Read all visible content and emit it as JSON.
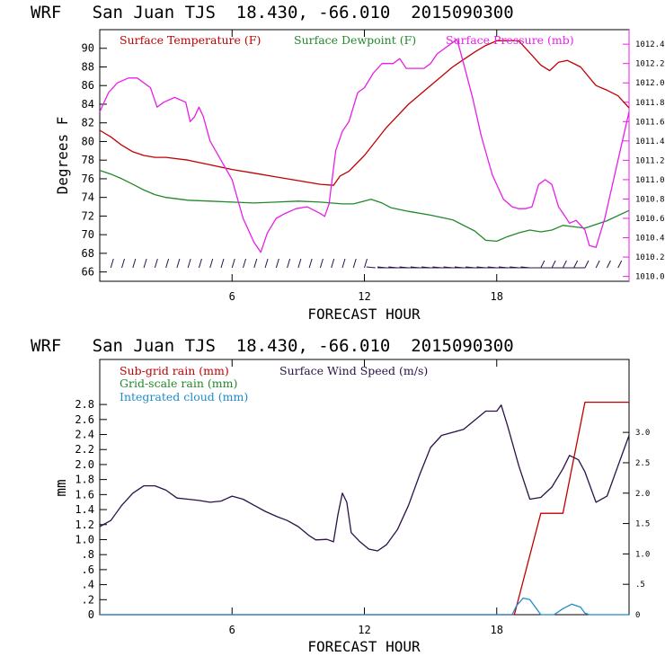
{
  "chart_data": [
    {
      "type": "line",
      "title": "WRF   San Juan TJS  18.430, -66.010  2015090300",
      "xlabel": "FORECAST HOUR",
      "ylabel": "Degrees F",
      "xlim": [
        0,
        24
      ],
      "x_ticks": [
        6,
        12,
        18
      ],
      "ylim": [
        65,
        92
      ],
      "y_ticks": [
        66,
        68,
        70,
        72,
        74,
        76,
        78,
        80,
        82,
        84,
        86,
        88,
        90
      ],
      "y2lim": [
        1009.95,
        1012.55
      ],
      "y2_ticks": [
        "1010.0",
        "1010.2",
        "1010.4",
        "1010.6",
        "1010.8",
        "1011.0",
        "1011.2",
        "1011.4",
        "1011.6",
        "1011.8",
        "1012.0",
        "1012.2",
        "1012.4"
      ],
      "colors": {
        "temp": "#c00000",
        "dew": "#22882a",
        "pres": "#e81ee8",
        "wind": "#2a1248"
      },
      "series": [
        {
          "name": "Surface Temperature (F)",
          "axis": "left",
          "points": [
            [
              0,
              81.2
            ],
            [
              0.5,
              80.5
            ],
            [
              1,
              79.6
            ],
            [
              1.5,
              78.9
            ],
            [
              2,
              78.5
            ],
            [
              2.5,
              78.3
            ],
            [
              3,
              78.3
            ],
            [
              4,
              78.0
            ],
            [
              5,
              77.5
            ],
            [
              6,
              77.0
            ],
            [
              7,
              76.6
            ],
            [
              8,
              76.2
            ],
            [
              9,
              75.8
            ],
            [
              10,
              75.4
            ],
            [
              10.6,
              75.3
            ],
            [
              10.9,
              76.3
            ],
            [
              11.3,
              76.8
            ],
            [
              12,
              78.5
            ],
            [
              12.5,
              80.0
            ],
            [
              13,
              81.5
            ],
            [
              14,
              84.0
            ],
            [
              15,
              86.0
            ],
            [
              16,
              88.0
            ],
            [
              17,
              89.6
            ],
            [
              17.5,
              90.3
            ],
            [
              18,
              90.8
            ],
            [
              19,
              90.8
            ],
            [
              19.5,
              89.5
            ],
            [
              20,
              88.2
            ],
            [
              20.4,
              87.6
            ],
            [
              20.8,
              88.5
            ],
            [
              21.2,
              88.7
            ],
            [
              21.8,
              88.0
            ],
            [
              22.5,
              86.0
            ],
            [
              23,
              85.5
            ],
            [
              23.5,
              84.9
            ],
            [
              24,
              83.6
            ]
          ]
        },
        {
          "name": "Surface Dewpoint (F)",
          "axis": "left",
          "points": [
            [
              0,
              76.9
            ],
            [
              0.5,
              76.5
            ],
            [
              1,
              76.0
            ],
            [
              1.5,
              75.4
            ],
            [
              2,
              74.8
            ],
            [
              2.5,
              74.3
            ],
            [
              3,
              74.0
            ],
            [
              4,
              73.7
            ],
            [
              5,
              73.6
            ],
            [
              6,
              73.5
            ],
            [
              7,
              73.4
            ],
            [
              8,
              73.5
            ],
            [
              9,
              73.6
            ],
            [
              10,
              73.5
            ],
            [
              11,
              73.3
            ],
            [
              11.5,
              73.3
            ],
            [
              12,
              73.6
            ],
            [
              12.3,
              73.8
            ],
            [
              12.8,
              73.4
            ],
            [
              13.2,
              72.9
            ],
            [
              14,
              72.5
            ],
            [
              15,
              72.1
            ],
            [
              16,
              71.6
            ],
            [
              17,
              70.4
            ],
            [
              17.5,
              69.4
            ],
            [
              18,
              69.3
            ],
            [
              18.5,
              69.8
            ],
            [
              19,
              70.2
            ],
            [
              19.5,
              70.5
            ],
            [
              20,
              70.3
            ],
            [
              20.5,
              70.5
            ],
            [
              21,
              71.0
            ],
            [
              22,
              70.7
            ],
            [
              23,
              71.5
            ],
            [
              24,
              72.6
            ]
          ]
        },
        {
          "name": "Surface Pressure (mb)",
          "axis": "right",
          "points": [
            [
              0,
              1011.7
            ],
            [
              0.4,
              1011.9
            ],
            [
              0.8,
              1012.0
            ],
            [
              1.3,
              1012.05
            ],
            [
              1.7,
              1012.05
            ],
            [
              2,
              1012.0
            ],
            [
              2.3,
              1011.95
            ],
            [
              2.6,
              1011.75
            ],
            [
              2.9,
              1011.8
            ],
            [
              3.4,
              1011.85
            ],
            [
              3.9,
              1011.8
            ],
            [
              4.1,
              1011.6
            ],
            [
              4.3,
              1011.65
            ],
            [
              4.5,
              1011.75
            ],
            [
              4.7,
              1011.65
            ],
            [
              5.0,
              1011.4
            ],
            [
              5.5,
              1011.2
            ],
            [
              6,
              1011.0
            ],
            [
              6.5,
              1010.6
            ],
            [
              7,
              1010.35
            ],
            [
              7.3,
              1010.25
            ],
            [
              7.6,
              1010.45
            ],
            [
              8,
              1010.6
            ],
            [
              8.4,
              1010.65
            ],
            [
              8.9,
              1010.7
            ],
            [
              9.4,
              1010.72
            ],
            [
              10,
              1010.65
            ],
            [
              10.2,
              1010.62
            ],
            [
              10.4,
              1010.75
            ],
            [
              10.7,
              1011.3
            ],
            [
              11,
              1011.5
            ],
            [
              11.3,
              1011.6
            ],
            [
              11.7,
              1011.9
            ],
            [
              12,
              1011.95
            ],
            [
              12.4,
              1012.1
            ],
            [
              12.8,
              1012.2
            ],
            [
              13.3,
              1012.2
            ],
            [
              13.6,
              1012.25
            ],
            [
              13.9,
              1012.15
            ],
            [
              14.3,
              1012.15
            ],
            [
              14.7,
              1012.15
            ],
            [
              15,
              1012.2
            ],
            [
              15.3,
              1012.3
            ],
            [
              15.6,
              1012.35
            ],
            [
              15.9,
              1012.4
            ],
            [
              16.2,
              1012.45
            ],
            [
              16.5,
              1012.2
            ],
            [
              16.9,
              1011.85
            ],
            [
              17.3,
              1011.45
            ],
            [
              17.8,
              1011.05
            ],
            [
              18.3,
              1010.8
            ],
            [
              18.7,
              1010.72
            ],
            [
              19.0,
              1010.7
            ],
            [
              19.3,
              1010.7
            ],
            [
              19.6,
              1010.72
            ],
            [
              19.9,
              1010.95
            ],
            [
              20.2,
              1011.0
            ],
            [
              20.5,
              1010.95
            ],
            [
              20.8,
              1010.72
            ],
            [
              21.1,
              1010.62
            ],
            [
              21.3,
              1010.55
            ],
            [
              21.6,
              1010.58
            ],
            [
              22,
              1010.48
            ],
            [
              22.2,
              1010.32
            ],
            [
              22.5,
              1010.3
            ],
            [
              22.9,
              1010.6
            ],
            [
              23.3,
              1011.0
            ],
            [
              23.7,
              1011.4
            ],
            [
              24,
              1011.7
            ]
          ]
        }
      ]
    },
    {
      "type": "line",
      "title": "WRF   San Juan TJS  18.430, -66.010  2015090300",
      "xlabel": "FORECAST HOUR",
      "ylabel": "mm",
      "xlim": [
        0,
        24
      ],
      "x_ticks": [
        6,
        12,
        18
      ],
      "ylim": [
        0,
        3.4
      ],
      "y_ticks": [
        "0",
        ".2",
        ".4",
        ".6",
        ".8",
        "1.0",
        "1.2",
        "1.4",
        "1.6",
        "1.8",
        "2.0",
        "2.2",
        "2.4",
        "2.6",
        "2.8"
      ],
      "y2lim": [
        0,
        4.2
      ],
      "y2_ticks": [
        "0",
        ".5",
        "1.0",
        "1.5",
        "2.0",
        "2.5",
        "3.0"
      ],
      "colors": {
        "subgrid": "#c00000",
        "gridscale": "#22882a",
        "cloud": "#1e8ccc",
        "wind": "#2a1248"
      },
      "legend_left": [
        "Sub-grid rain (mm)",
        "Grid-scale rain (mm)",
        "Integrated cloud (mm)"
      ],
      "legend_right": "Surface Wind Speed (m/s)",
      "series": [
        {
          "name": "Sub-grid rain (mm)",
          "axis": "left",
          "points": [
            [
              0,
              0
            ],
            [
              18.8,
              0
            ],
            [
              20.0,
              1.35
            ],
            [
              21.0,
              1.35
            ],
            [
              22.0,
              2.83
            ],
            [
              24,
              2.83
            ]
          ]
        },
        {
          "name": "Integrated cloud (mm)",
          "axis": "left",
          "points": [
            [
              0,
              0
            ],
            [
              18.7,
              0
            ],
            [
              18.9,
              0.12
            ],
            [
              19.2,
              0.22
            ],
            [
              19.5,
              0.2
            ],
            [
              19.8,
              0.08
            ],
            [
              20.0,
              0
            ],
            [
              20.6,
              0
            ],
            [
              21.0,
              0.08
            ],
            [
              21.4,
              0.14
            ],
            [
              21.8,
              0.1
            ],
            [
              22.0,
              0.02
            ],
            [
              22.2,
              0
            ],
            [
              24,
              0
            ]
          ]
        },
        {
          "name": "Surface Wind Speed (m/s)",
          "axis": "right",
          "points": [
            [
              0,
              1.45
            ],
            [
              0.5,
              1.55
            ],
            [
              1,
              1.8
            ],
            [
              1.5,
              2.0
            ],
            [
              2,
              2.12
            ],
            [
              2.5,
              2.12
            ],
            [
              3,
              2.05
            ],
            [
              3.5,
              1.92
            ],
            [
              4,
              1.9
            ],
            [
              4.5,
              1.88
            ],
            [
              5,
              1.85
            ],
            [
              5.5,
              1.87
            ],
            [
              6,
              1.95
            ],
            [
              6.5,
              1.9
            ],
            [
              7,
              1.8
            ],
            [
              7.5,
              1.7
            ],
            [
              8,
              1.62
            ],
            [
              8.5,
              1.55
            ],
            [
              9,
              1.45
            ],
            [
              9.5,
              1.3
            ],
            [
              9.8,
              1.23
            ],
            [
              10.3,
              1.24
            ],
            [
              10.6,
              1.2
            ],
            [
              10.8,
              1.65
            ],
            [
              11,
              2.0
            ],
            [
              11.2,
              1.85
            ],
            [
              11.4,
              1.35
            ],
            [
              11.8,
              1.2
            ],
            [
              12.2,
              1.08
            ],
            [
              12.6,
              1.05
            ],
            [
              13,
              1.15
            ],
            [
              13.5,
              1.4
            ],
            [
              14,
              1.8
            ],
            [
              14.5,
              2.3
            ],
            [
              15,
              2.75
            ],
            [
              15.5,
              2.95
            ],
            [
              16,
              3.0
            ],
            [
              16.5,
              3.05
            ],
            [
              17,
              3.2
            ],
            [
              17.5,
              3.35
            ],
            [
              18,
              3.35
            ],
            [
              18.2,
              3.45
            ],
            [
              18.5,
              3.1
            ],
            [
              19,
              2.45
            ],
            [
              19.5,
              1.9
            ],
            [
              20,
              1.93
            ],
            [
              20.5,
              2.1
            ],
            [
              21,
              2.4
            ],
            [
              21.3,
              2.62
            ],
            [
              21.7,
              2.55
            ],
            [
              22,
              2.35
            ],
            [
              22.5,
              1.85
            ],
            [
              23,
              1.95
            ],
            [
              23.5,
              2.45
            ],
            [
              24,
              2.95
            ]
          ]
        }
      ]
    }
  ]
}
